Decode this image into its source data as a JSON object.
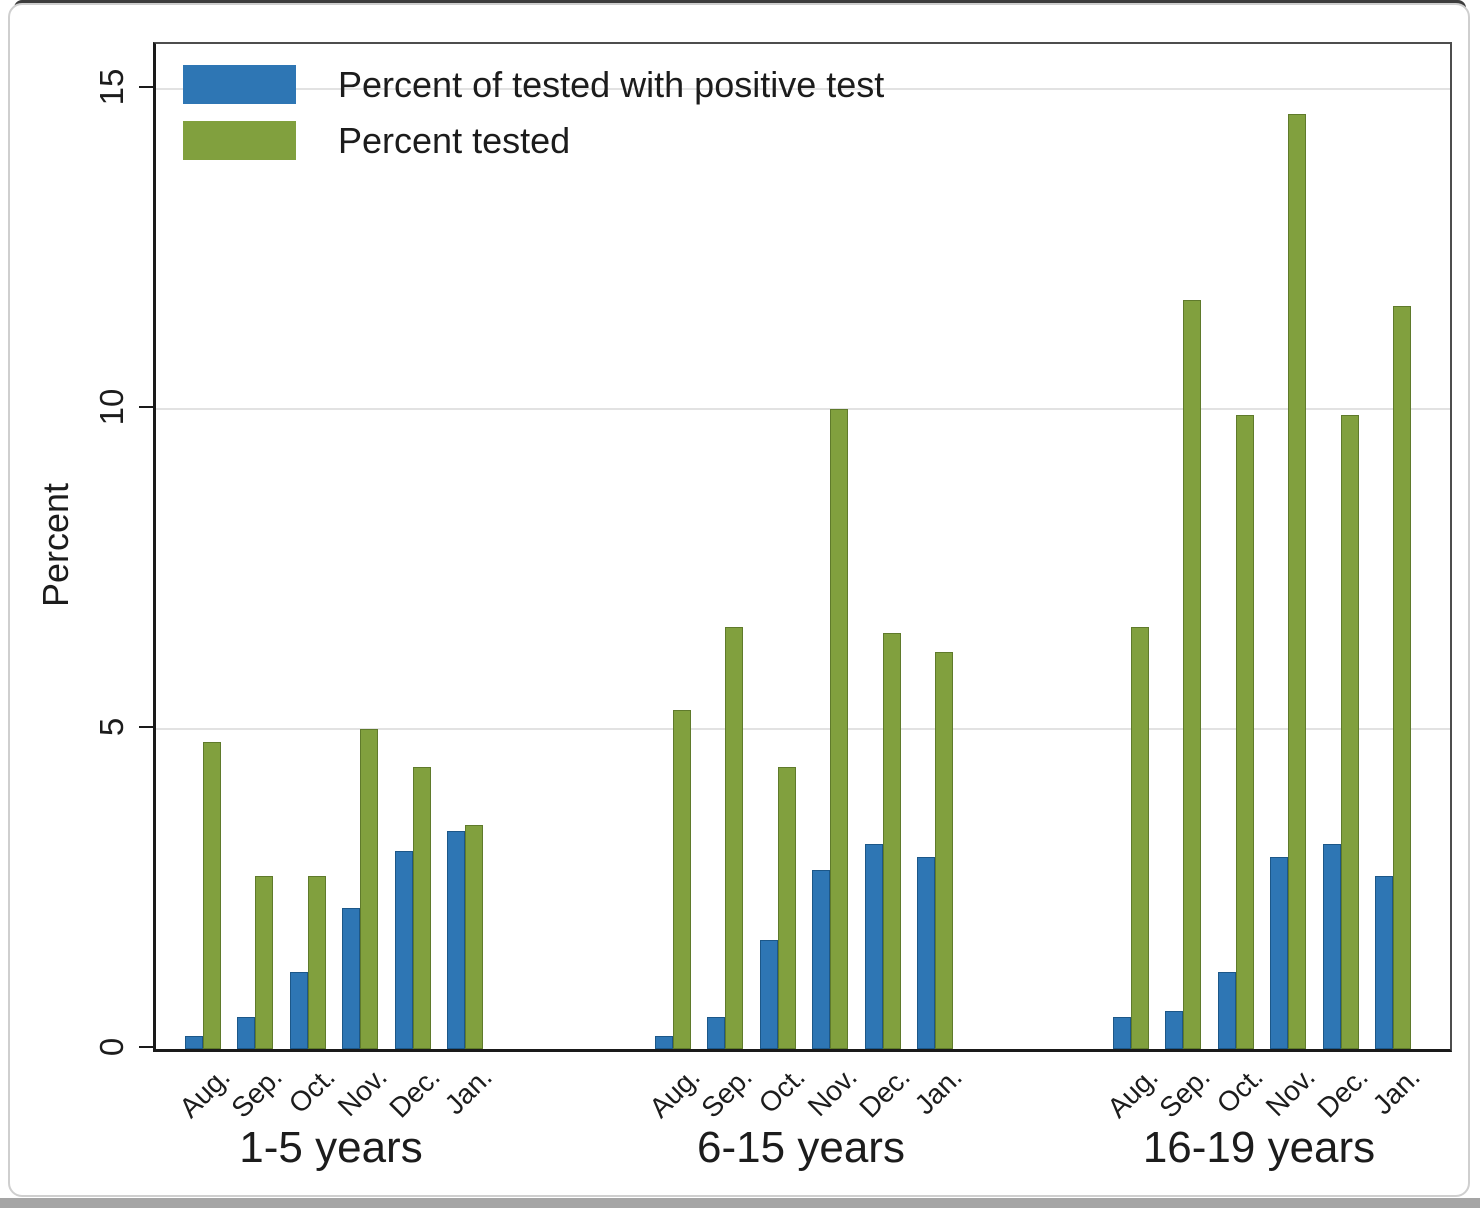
{
  "legend": [
    {
      "label": "Percent of tested with positive test",
      "color_key": "positive"
    },
    {
      "label": "Percent tested",
      "color_key": "tested"
    }
  ],
  "colors": {
    "positive": "#2e76b4",
    "positive_border": "#1c5788",
    "tested": "#81a03e",
    "tested_border": "#5f7a2b",
    "gridline": "#e2e2e2",
    "axis": "#1a1a1a"
  },
  "chart_data": {
    "type": "bar",
    "title": "",
    "xlabel": "",
    "ylabel": "Percent",
    "ylim": [
      0,
      15.7
    ],
    "yticks": [
      0,
      5,
      10,
      15
    ],
    "grid": "horizontal",
    "legend_position": "top-left",
    "categories": [
      "Aug.",
      "Sep.",
      "Oct.",
      "Nov.",
      "Dec.",
      "Jan."
    ],
    "groups": [
      {
        "label": "1-5 years",
        "series": [
          {
            "name": "Percent of tested with positive test",
            "values": [
              0.2,
              0.5,
              1.2,
              2.2,
              3.1,
              3.4
            ]
          },
          {
            "name": "Percent tested",
            "values": [
              4.8,
              2.7,
              2.7,
              5.0,
              4.4,
              3.5
            ]
          }
        ]
      },
      {
        "label": "6-15 years",
        "series": [
          {
            "name": "Percent of tested with positive test",
            "values": [
              0.2,
              0.5,
              1.7,
              2.8,
              3.2,
              3.0
            ]
          },
          {
            "name": "Percent tested",
            "values": [
              5.3,
              6.6,
              4.4,
              10.0,
              6.5,
              6.2
            ]
          }
        ]
      },
      {
        "label": "16-19 years",
        "series": [
          {
            "name": "Percent of tested with positive test",
            "values": [
              0.5,
              0.6,
              1.2,
              3.0,
              3.2,
              2.7
            ]
          },
          {
            "name": "Percent tested",
            "values": [
              6.6,
              11.7,
              9.9,
              14.6,
              9.9,
              11.6
            ]
          }
        ]
      }
    ]
  }
}
